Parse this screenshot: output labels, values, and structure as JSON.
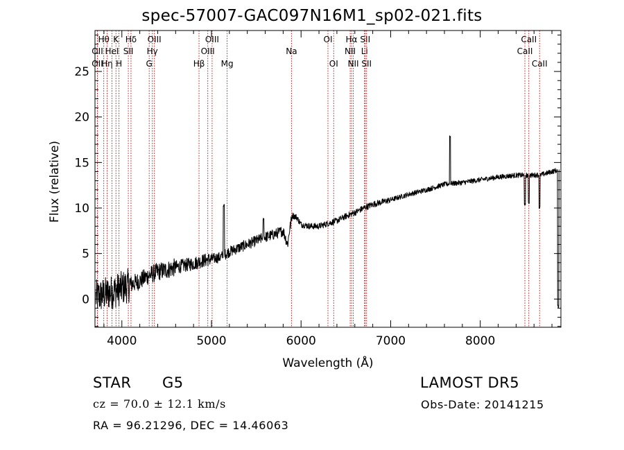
{
  "chart_data": {
    "type": "line",
    "title": "spec-57007-GAC097N16M1_sp02-021.fits",
    "xlabel": "Wavelength (Å)",
    "ylabel": "Flux (relative)",
    "xlim": [
      3700,
      8900
    ],
    "ylim": [
      -3.1,
      29.5
    ],
    "xticks": [
      4000,
      5000,
      6000,
      7000,
      8000
    ],
    "yticks": [
      0,
      5,
      10,
      15,
      20,
      25
    ],
    "grid": false,
    "line_color": "#000000",
    "line_marker_color": "#cc0000",
    "spectrum_anchors": [
      [
        3710,
        0.2
      ],
      [
        3800,
        0.5
      ],
      [
        3900,
        0.8
      ],
      [
        4000,
        1.2
      ],
      [
        4100,
        1.6
      ],
      [
        4200,
        2.0
      ],
      [
        4300,
        2.6
      ],
      [
        4400,
        3.0
      ],
      [
        4500,
        3.2
      ],
      [
        4600,
        3.5
      ],
      [
        4700,
        3.7
      ],
      [
        4800,
        3.9
      ],
      [
        4900,
        4.2
      ],
      [
        5000,
        4.4
      ],
      [
        5100,
        4.6
      ],
      [
        5200,
        5.2
      ],
      [
        5300,
        5.6
      ],
      [
        5400,
        6.0
      ],
      [
        5500,
        6.4
      ],
      [
        5600,
        6.8
      ],
      [
        5700,
        7.1
      ],
      [
        5800,
        7.5
      ],
      [
        5850,
        6.0
      ],
      [
        5870,
        7.5
      ],
      [
        5900,
        9.2
      ],
      [
        5950,
        9.0
      ],
      [
        6000,
        8.2
      ],
      [
        6100,
        8.0
      ],
      [
        6200,
        8.0
      ],
      [
        6300,
        8.3
      ],
      [
        6400,
        8.6
      ],
      [
        6500,
        9.1
      ],
      [
        6600,
        9.5
      ],
      [
        6700,
        10.0
      ],
      [
        6800,
        10.4
      ],
      [
        7000,
        10.9
      ],
      [
        7200,
        11.5
      ],
      [
        7400,
        12.0
      ],
      [
        7600,
        12.6
      ],
      [
        7800,
        12.8
      ],
      [
        8000,
        13.1
      ],
      [
        8200,
        13.4
      ],
      [
        8400,
        13.6
      ],
      [
        8500,
        13.6
      ],
      [
        8600,
        13.6
      ],
      [
        8700,
        13.7
      ],
      [
        8800,
        14.0
      ],
      [
        8880,
        14.2
      ]
    ],
    "spectrum_features": [
      {
        "x": 5138,
        "value": 10.3
      },
      {
        "x": 5580,
        "value": 8.8
      },
      {
        "x": 7663,
        "value": 17.9
      },
      {
        "x": 8498,
        "value": 10.4
      },
      {
        "x": 8542,
        "value": 10.6
      },
      {
        "x": 8662,
        "value": 10.1
      },
      {
        "x": 8870,
        "value": -0.8
      }
    ],
    "lines": [
      {
        "label": "Hθ",
        "x": 3798,
        "row": 0
      },
      {
        "label": "OII",
        "x": 3727,
        "row": 1
      },
      {
        "label": "OII",
        "x": 3727,
        "row": 2
      },
      {
        "label": "Hη",
        "x": 3835,
        "row": 2
      },
      {
        "label": "HeI",
        "x": 3889,
        "row": 1
      },
      {
        "label": "K",
        "x": 3934,
        "row": 0
      },
      {
        "label": "H",
        "x": 3968,
        "row": 2
      },
      {
        "label": "Hδ",
        "x": 4102,
        "row": 0
      },
      {
        "label": "SII",
        "x": 4072,
        "row": 1
      },
      {
        "label": "OIII",
        "x": 4363,
        "row": 0
      },
      {
        "label": "Hγ",
        "x": 4340,
        "row": 1
      },
      {
        "label": "G",
        "x": 4305,
        "row": 2
      },
      {
        "label": "Hβ",
        "x": 4861,
        "row": 2
      },
      {
        "label": "OIII",
        "x": 5007,
        "row": 0
      },
      {
        "label": "OIII",
        "x": 4959,
        "row": 1
      },
      {
        "label": "Mg",
        "x": 5175,
        "row": 2
      },
      {
        "label": "Na",
        "x": 5893,
        "row": 1
      },
      {
        "label": "OI",
        "x": 6300,
        "row": 0
      },
      {
        "label": "OI",
        "x": 6364,
        "row": 2
      },
      {
        "label": "Hα",
        "x": 6563,
        "row": 0
      },
      {
        "label": "NII",
        "x": 6548,
        "row": 1
      },
      {
        "label": "NII",
        "x": 6583,
        "row": 2
      },
      {
        "label": "SII",
        "x": 6716,
        "row": 0
      },
      {
        "label": "Li",
        "x": 6708,
        "row": 1
      },
      {
        "label": "SII",
        "x": 6731,
        "row": 2
      },
      {
        "label": "CaII",
        "x": 8542,
        "row": 0
      },
      {
        "label": "CaII",
        "x": 8498,
        "row": 1
      },
      {
        "label": "CaII",
        "x": 8662,
        "row": 2
      }
    ]
  },
  "info": {
    "object_class": "STAR",
    "subclass": "G5",
    "survey": "LAMOST  DR5",
    "cz": "cz = 70.0 ± 12.1 km/s",
    "obs_date": "Obs-Date: 20141215",
    "coords": "RA =  96.21296, DEC =  14.46063"
  }
}
